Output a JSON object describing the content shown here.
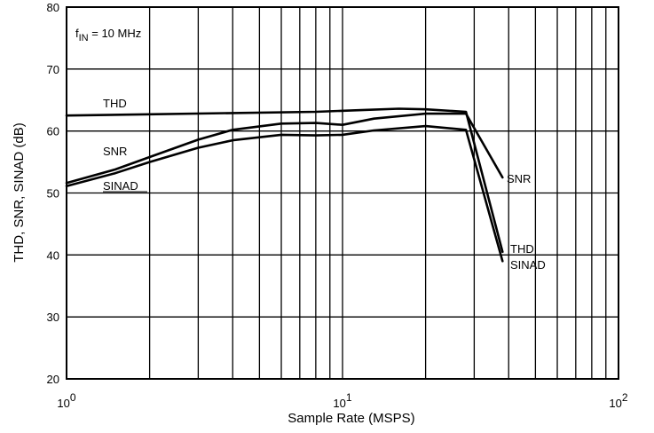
{
  "chart_data": {
    "type": "line",
    "x_scale": "log",
    "xlim": [
      1,
      100
    ],
    "ylim": [
      20,
      80
    ],
    "grid": true,
    "xlabel": "Sample Rate (MSPS)",
    "ylabel": "THD, SNR, SINAD (dB)",
    "annotation": {
      "main": "f",
      "sub": "IN",
      "rest": " = 10 MHz"
    },
    "x_ticks": [
      {
        "value": 1,
        "base": "10",
        "exp": "0"
      },
      {
        "value": 10,
        "base": "10",
        "exp": "1"
      },
      {
        "value": 100,
        "base": "10",
        "exp": "2"
      }
    ],
    "y_ticks": [
      20,
      30,
      40,
      50,
      60,
      70,
      80
    ],
    "series": [
      {
        "name": "THD",
        "x": [
          1,
          2,
          4,
          8,
          12,
          16,
          20,
          28,
          38
        ],
        "y": [
          62.5,
          62.7,
          62.9,
          63.1,
          63.4,
          63.6,
          63.5,
          63.1,
          40.5
        ]
      },
      {
        "name": "SNR",
        "x": [
          1,
          1.5,
          2,
          3,
          4,
          6,
          8,
          10,
          13,
          20,
          28,
          38
        ],
        "y": [
          51.6,
          53.8,
          55.8,
          58.6,
          60.2,
          61.2,
          61.3,
          61.0,
          62.0,
          62.8,
          62.8,
          52.5
        ]
      },
      {
        "name": "SINAD",
        "x": [
          1,
          1.5,
          2,
          3,
          4,
          6,
          8,
          10,
          13,
          20,
          28,
          38
        ],
        "y": [
          51.1,
          53.2,
          55.0,
          57.3,
          58.5,
          59.4,
          59.3,
          59.4,
          60.1,
          60.8,
          60.2,
          39.0
        ]
      }
    ],
    "series_labels": [
      {
        "series": "THD",
        "text": "THD"
      },
      {
        "series": "SNR",
        "text": "SNR"
      },
      {
        "series": "SINAD",
        "text": "SINAD"
      },
      {
        "series": "SNR",
        "text": "SNR"
      },
      {
        "series": "THD",
        "text": "THD"
      },
      {
        "series": "SINAD",
        "text": "SINAD"
      }
    ]
  }
}
